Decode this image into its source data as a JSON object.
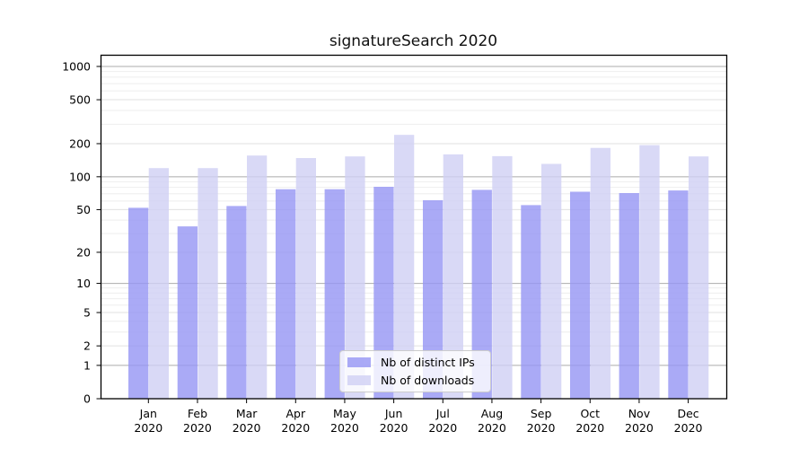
{
  "chart_data": {
    "type": "bar",
    "title": "signatureSearch 2020",
    "categories": [
      "Jan",
      "Feb",
      "Mar",
      "Apr",
      "May",
      "Jun",
      "Jul",
      "Aug",
      "Sep",
      "Oct",
      "Nov",
      "Dec"
    ],
    "year": "2020",
    "series": [
      {
        "name": "Nb of distinct IPs",
        "color": "#9595f4",
        "values": [
          52,
          35,
          54,
          77,
          77,
          81,
          61,
          76,
          55,
          73,
          71,
          75
        ]
      },
      {
        "name": "Nb of downloads",
        "color": "#cfcff4",
        "values": [
          120,
          120,
          156,
          148,
          153,
          240,
          160,
          154,
          131,
          183,
          194,
          153
        ]
      }
    ],
    "bar_fill_opacity": 0.8,
    "y_scale": "log10(value+1)",
    "y_ticks": [
      1000,
      500,
      200,
      100,
      50,
      20,
      10,
      5,
      2,
      1,
      0
    ],
    "ylim": [
      0,
      1264
    ],
    "xlabel": "",
    "ylabel": "",
    "grid": true,
    "legend_position": "bottom-center",
    "colors": {
      "bar_distinct_ips": "#aaaaf6",
      "bar_downloads": "#d9d9f6",
      "grid_major": "#ababab",
      "grid_labeled": "#e0e0e0",
      "grid_minor": "#eeeeee",
      "axis": "#000000"
    }
  }
}
